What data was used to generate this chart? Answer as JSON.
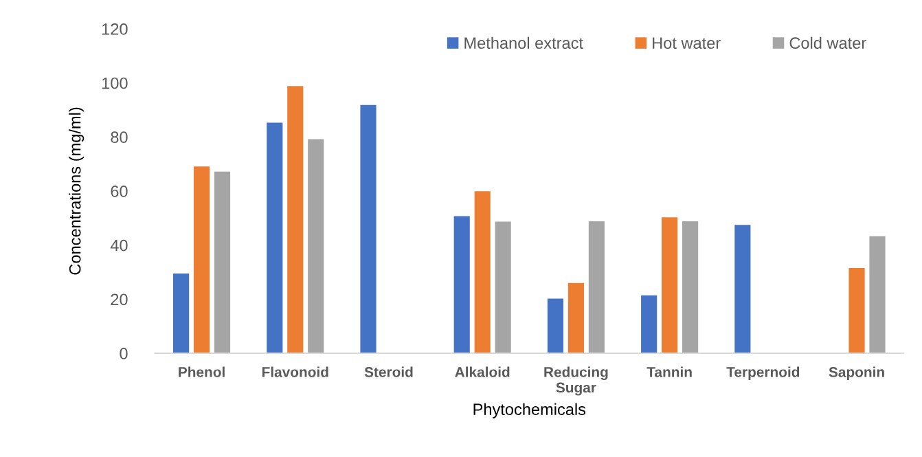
{
  "chart_data": {
    "type": "bar",
    "xlabel": "Phytochemicals",
    "ylabel": "Concentrations (mg/ml)",
    "categories": [
      "Phenol",
      "Flavonoid",
      "Steroid",
      "Alkaloid",
      "Reducing\nSugar",
      "Tannin",
      "Terpernoid",
      "Saponin"
    ],
    "series": [
      {
        "name": "Methanol extract",
        "color": "#4472c4",
        "values": [
          29.5,
          85.3,
          91.8,
          50.7,
          20.2,
          21.4,
          47.5,
          null
        ]
      },
      {
        "name": "Hot water",
        "color": "#ed7d31",
        "values": [
          69.1,
          98.8,
          null,
          59.9,
          26.0,
          50.3,
          null,
          31.5
        ]
      },
      {
        "name": "Cold water",
        "color": "#a5a5a5",
        "values": [
          67.2,
          79.2,
          null,
          48.7,
          48.8,
          48.8,
          null,
          43.3
        ]
      }
    ],
    "ylim": [
      0,
      120
    ],
    "yticks": [
      0,
      20,
      40,
      60,
      80,
      100,
      120
    ],
    "grid": false,
    "legend": "top right"
  }
}
